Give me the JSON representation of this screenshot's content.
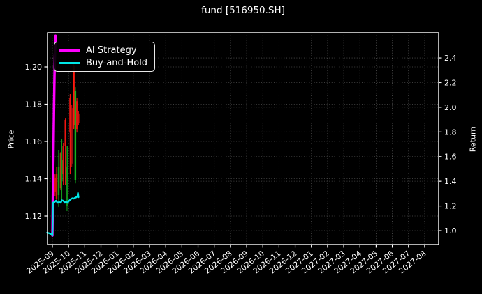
{
  "title": "fund [516950.SH]",
  "axes": {
    "left_label": "Price",
    "right_label": "Return"
  },
  "legend": {
    "items": [
      {
        "label": "AI Strategy",
        "color": "#ff00ff"
      },
      {
        "label": "Buy-and-Hold",
        "color": "#00e6e6"
      }
    ]
  },
  "colors": {
    "background": "#000000",
    "foreground": "#ffffff",
    "grid": "rgba(255,255,255,0.32)",
    "candle_up_red": "#ef1410",
    "candle_down_green": "#12991c"
  },
  "chart_data": {
    "type": "line+candlestick",
    "title": "fund [516950.SH]",
    "grid": "dotted",
    "legend_position": "upper-left",
    "x_axis": {
      "tick_rotation_deg": 38,
      "tick_labels": [
        "2025-09",
        "2025-10",
        "2025-11",
        "2025-12",
        "2026-01",
        "2026-02",
        "2026-03",
        "2026-04",
        "2026-05",
        "2026-06",
        "2026-07",
        "2026-08",
        "2026-09",
        "2026-10",
        "2026-11",
        "2026-12",
        "2027-01",
        "2027-02",
        "2027-03",
        "2027-04",
        "2027-05",
        "2027-06",
        "2027-07",
        "2027-08"
      ]
    },
    "left_axis": {
      "label": "Price",
      "ticks": [
        "1.12",
        "1.14",
        "1.16",
        "1.18",
        "1.20"
      ],
      "tick_values": [
        1.12,
        1.14,
        1.16,
        1.18,
        1.2
      ],
      "range": [
        1.104,
        1.218
      ]
    },
    "right_axis": {
      "label": "Return",
      "ticks": [
        "1.0",
        "1.2",
        "1.4",
        "1.6",
        "1.8",
        "2.0",
        "2.2",
        "2.4"
      ],
      "tick_values": [
        1.0,
        1.2,
        1.4,
        1.6,
        1.8,
        2.0,
        2.2,
        2.4
      ],
      "range": [
        0.89,
        2.6
      ]
    },
    "series": [
      {
        "name": "AI Strategy",
        "axis": "right",
        "color": "#ff00ff",
        "width": 3.5,
        "points": [
          [
            "2025-09-01",
            0.96
          ],
          [
            "2025-09-02",
            1.3
          ],
          [
            "2025-09-03",
            1.62
          ],
          [
            "2025-09-04",
            1.95
          ],
          [
            "2025-09-05",
            2.25
          ],
          [
            "2025-09-06",
            2.43
          ],
          [
            "2025-09-07",
            2.58
          ]
        ]
      },
      {
        "name": "Buy-and-Hold",
        "axis": "left",
        "color": "#00e6e6",
        "width": 2.4,
        "points": [
          [
            "2025-08-22",
            1.111
          ],
          [
            "2025-08-26",
            1.1107
          ],
          [
            "2025-08-31",
            1.1101
          ],
          [
            "2025-09-01",
            1.1095
          ],
          [
            "2025-09-02",
            1.1271
          ],
          [
            "2025-09-05",
            1.1275
          ],
          [
            "2025-09-08",
            1.1282
          ],
          [
            "2025-09-11",
            1.1271
          ],
          [
            "2025-09-14",
            1.1275
          ],
          [
            "2025-09-17",
            1.1271
          ],
          [
            "2025-09-19",
            1.1284
          ],
          [
            "2025-09-22",
            1.1282
          ],
          [
            "2025-09-25",
            1.1271
          ],
          [
            "2025-09-27",
            1.1277
          ],
          [
            "2025-09-30",
            1.1271
          ],
          [
            "2025-10-02",
            1.1282
          ],
          [
            "2025-10-05",
            1.129
          ],
          [
            "2025-10-08",
            1.1295
          ],
          [
            "2025-10-11",
            1.1293
          ],
          [
            "2025-10-13",
            1.1297
          ],
          [
            "2025-10-16",
            1.1301
          ],
          [
            "2025-10-18",
            1.1305
          ],
          [
            "2025-10-19",
            1.1323
          ],
          [
            "2025-10-20",
            1.1301
          ]
        ]
      }
    ],
    "candle_format": [
      "date",
      "high",
      "low",
      "body_top",
      "body_bottom",
      "color"
    ],
    "candles": [
      [
        "2025-09-06",
        1.1424,
        1.1305,
        1.1406,
        1.1331,
        "#dc1410"
      ],
      [
        "2025-09-09",
        1.1462,
        1.1275,
        1.1424,
        1.1293,
        "#d31410"
      ],
      [
        "2025-09-13",
        1.1555,
        1.1249,
        1.1462,
        1.1312,
        "#12991c"
      ],
      [
        "2025-09-17",
        1.1543,
        1.1338,
        1.1536,
        1.1349,
        "#b33d16"
      ],
      [
        "2025-09-19",
        1.1611,
        1.1282,
        1.1499,
        1.1387,
        "#12991c"
      ],
      [
        "2025-09-22",
        1.1593,
        1.1368,
        1.1574,
        1.1424,
        "#dc1410"
      ],
      [
        "2025-09-26",
        1.1723,
        1.1368,
        1.1716,
        1.1574,
        "#ef1410"
      ],
      [
        "2025-09-29",
        1.1574,
        1.1226,
        1.1462,
        1.1256,
        "#0f8c1a"
      ],
      [
        "2025-09-30",
        1.1574,
        1.1386,
        1.1555,
        1.1406,
        "#12991c"
      ],
      [
        "2025-10-04",
        1.1854,
        1.1424,
        1.1835,
        1.1648,
        "#ef1410"
      ],
      [
        "2025-10-07",
        1.1798,
        1.1462,
        1.1779,
        1.1481,
        "#a81210"
      ],
      [
        "2025-10-11",
        1.2015,
        1.1667,
        1.2004,
        1.1686,
        "#ff1a0e"
      ],
      [
        "2025-10-14",
        1.1891,
        1.1375,
        1.1873,
        1.1394,
        "#12b31f"
      ],
      [
        "2025-10-17",
        1.1835,
        1.1648,
        1.1816,
        1.1667,
        "#dc1410"
      ],
      [
        "2025-10-20",
        1.1761,
        1.1686,
        1.175,
        1.1698,
        "#c81410"
      ]
    ]
  }
}
